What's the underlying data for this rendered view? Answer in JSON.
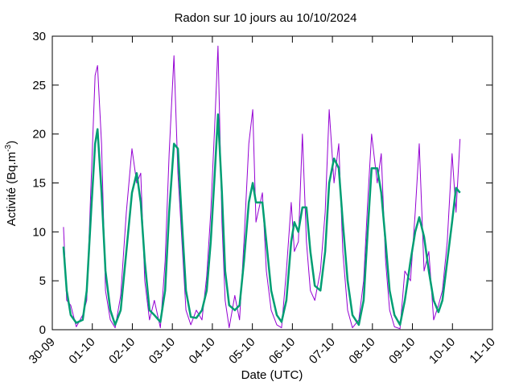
{
  "chart_data": {
    "type": "line",
    "title": "Radon sur 10 jours au 10/10/2024",
    "xlabel": "Date (UTC)",
    "ylabel_parts": [
      "Activité (Bq.m",
      "-3",
      ")"
    ],
    "x": [
      0.28,
      0.36,
      0.46,
      0.6,
      0.76,
      0.86,
      0.97,
      1.07,
      1.13,
      1.23,
      1.33,
      1.45,
      1.57,
      1.71,
      1.85,
      1.99,
      2.11,
      2.21,
      2.31,
      2.43,
      2.55,
      2.7,
      2.82,
      2.92,
      3.04,
      3.14,
      3.24,
      3.34,
      3.46,
      3.6,
      3.74,
      3.86,
      3.96,
      4.06,
      4.14,
      4.24,
      4.32,
      4.42,
      4.56,
      4.68,
      4.79,
      4.91,
      5.01,
      5.09,
      5.25,
      5.35,
      5.47,
      5.61,
      5.73,
      5.85,
      5.97,
      6.05,
      6.15,
      6.25,
      6.35,
      6.45,
      6.56,
      6.7,
      6.82,
      6.92,
      7.04,
      7.16,
      7.26,
      7.38,
      7.5,
      7.66,
      7.78,
      7.88,
      7.98,
      8.12,
      8.22,
      8.33,
      8.43,
      8.55,
      8.69,
      8.81,
      8.95,
      9.07,
      9.17,
      9.29,
      9.41,
      9.53,
      9.65,
      9.75,
      9.87,
      9.99,
      10.09,
      10.19
    ],
    "series": [
      {
        "color": "#9400d3",
        "width": 1,
        "values": [
          10.5,
          3,
          2.5,
          0.3,
          1.5,
          3,
          15,
          26,
          27,
          19,
          4,
          1,
          0.2,
          3.5,
          12,
          18.5,
          15,
          16,
          5,
          1,
          3,
          0.2,
          7,
          18,
          28,
          16,
          9,
          2,
          0.5,
          2,
          1,
          5.5,
          12,
          21,
          29,
          11,
          3,
          0.2,
          3.5,
          1,
          9,
          19,
          22.5,
          11,
          14,
          6,
          2,
          0.5,
          0.2,
          6,
          13,
          8,
          9,
          20,
          9,
          4,
          3,
          6,
          12,
          22.5,
          15,
          19,
          8,
          2,
          0.2,
          1,
          5,
          13,
          20,
          15,
          18,
          7,
          2,
          0.3,
          0.1,
          6,
          5,
          12,
          19,
          6,
          8,
          1,
          2.5,
          4,
          9,
          18,
          12,
          19.5
        ]
      },
      {
        "color": "#009e73",
        "width": 2.5,
        "values": [
          8.5,
          4,
          1.5,
          0.7,
          1,
          4,
          12,
          19,
          20.5,
          14,
          6,
          2,
          0.5,
          2,
          8,
          14,
          16,
          13,
          7,
          2,
          1.5,
          0.8,
          4,
          12,
          19,
          18.5,
          11,
          4,
          1.3,
          1.2,
          2,
          4,
          9,
          16,
          22,
          14,
          6,
          2.5,
          2,
          2.5,
          7,
          13,
          15,
          13,
          13,
          9,
          4,
          1.5,
          0.8,
          3,
          9,
          11,
          10,
          12.5,
          12.5,
          8,
          4.5,
          4,
          8,
          15,
          17.5,
          16.5,
          11,
          5,
          1.5,
          0.5,
          3,
          10,
          16.5,
          16.5,
          14,
          9,
          4,
          1.5,
          0.5,
          3,
          7,
          10,
          11.5,
          9.5,
          6,
          3,
          1.8,
          3,
          7,
          11,
          14.5,
          14
        ]
      }
    ],
    "xlim": [
      0,
      11
    ],
    "xticks": [
      {
        "value": 0,
        "label": "30-09"
      },
      {
        "value": 1,
        "label": "01-10"
      },
      {
        "value": 2,
        "label": "02-10"
      },
      {
        "value": 3,
        "label": "03-10"
      },
      {
        "value": 4,
        "label": "04-10"
      },
      {
        "value": 5,
        "label": "05-10"
      },
      {
        "value": 6,
        "label": "06-10"
      },
      {
        "value": 7,
        "label": "07-10"
      },
      {
        "value": 8,
        "label": "08-10"
      },
      {
        "value": 9,
        "label": "09-10"
      },
      {
        "value": 10,
        "label": "10-10"
      },
      {
        "value": 11,
        "label": "11-10"
      }
    ],
    "ylim": [
      0,
      30
    ],
    "yticks": [
      0,
      5,
      10,
      15,
      20,
      25,
      30
    ]
  }
}
